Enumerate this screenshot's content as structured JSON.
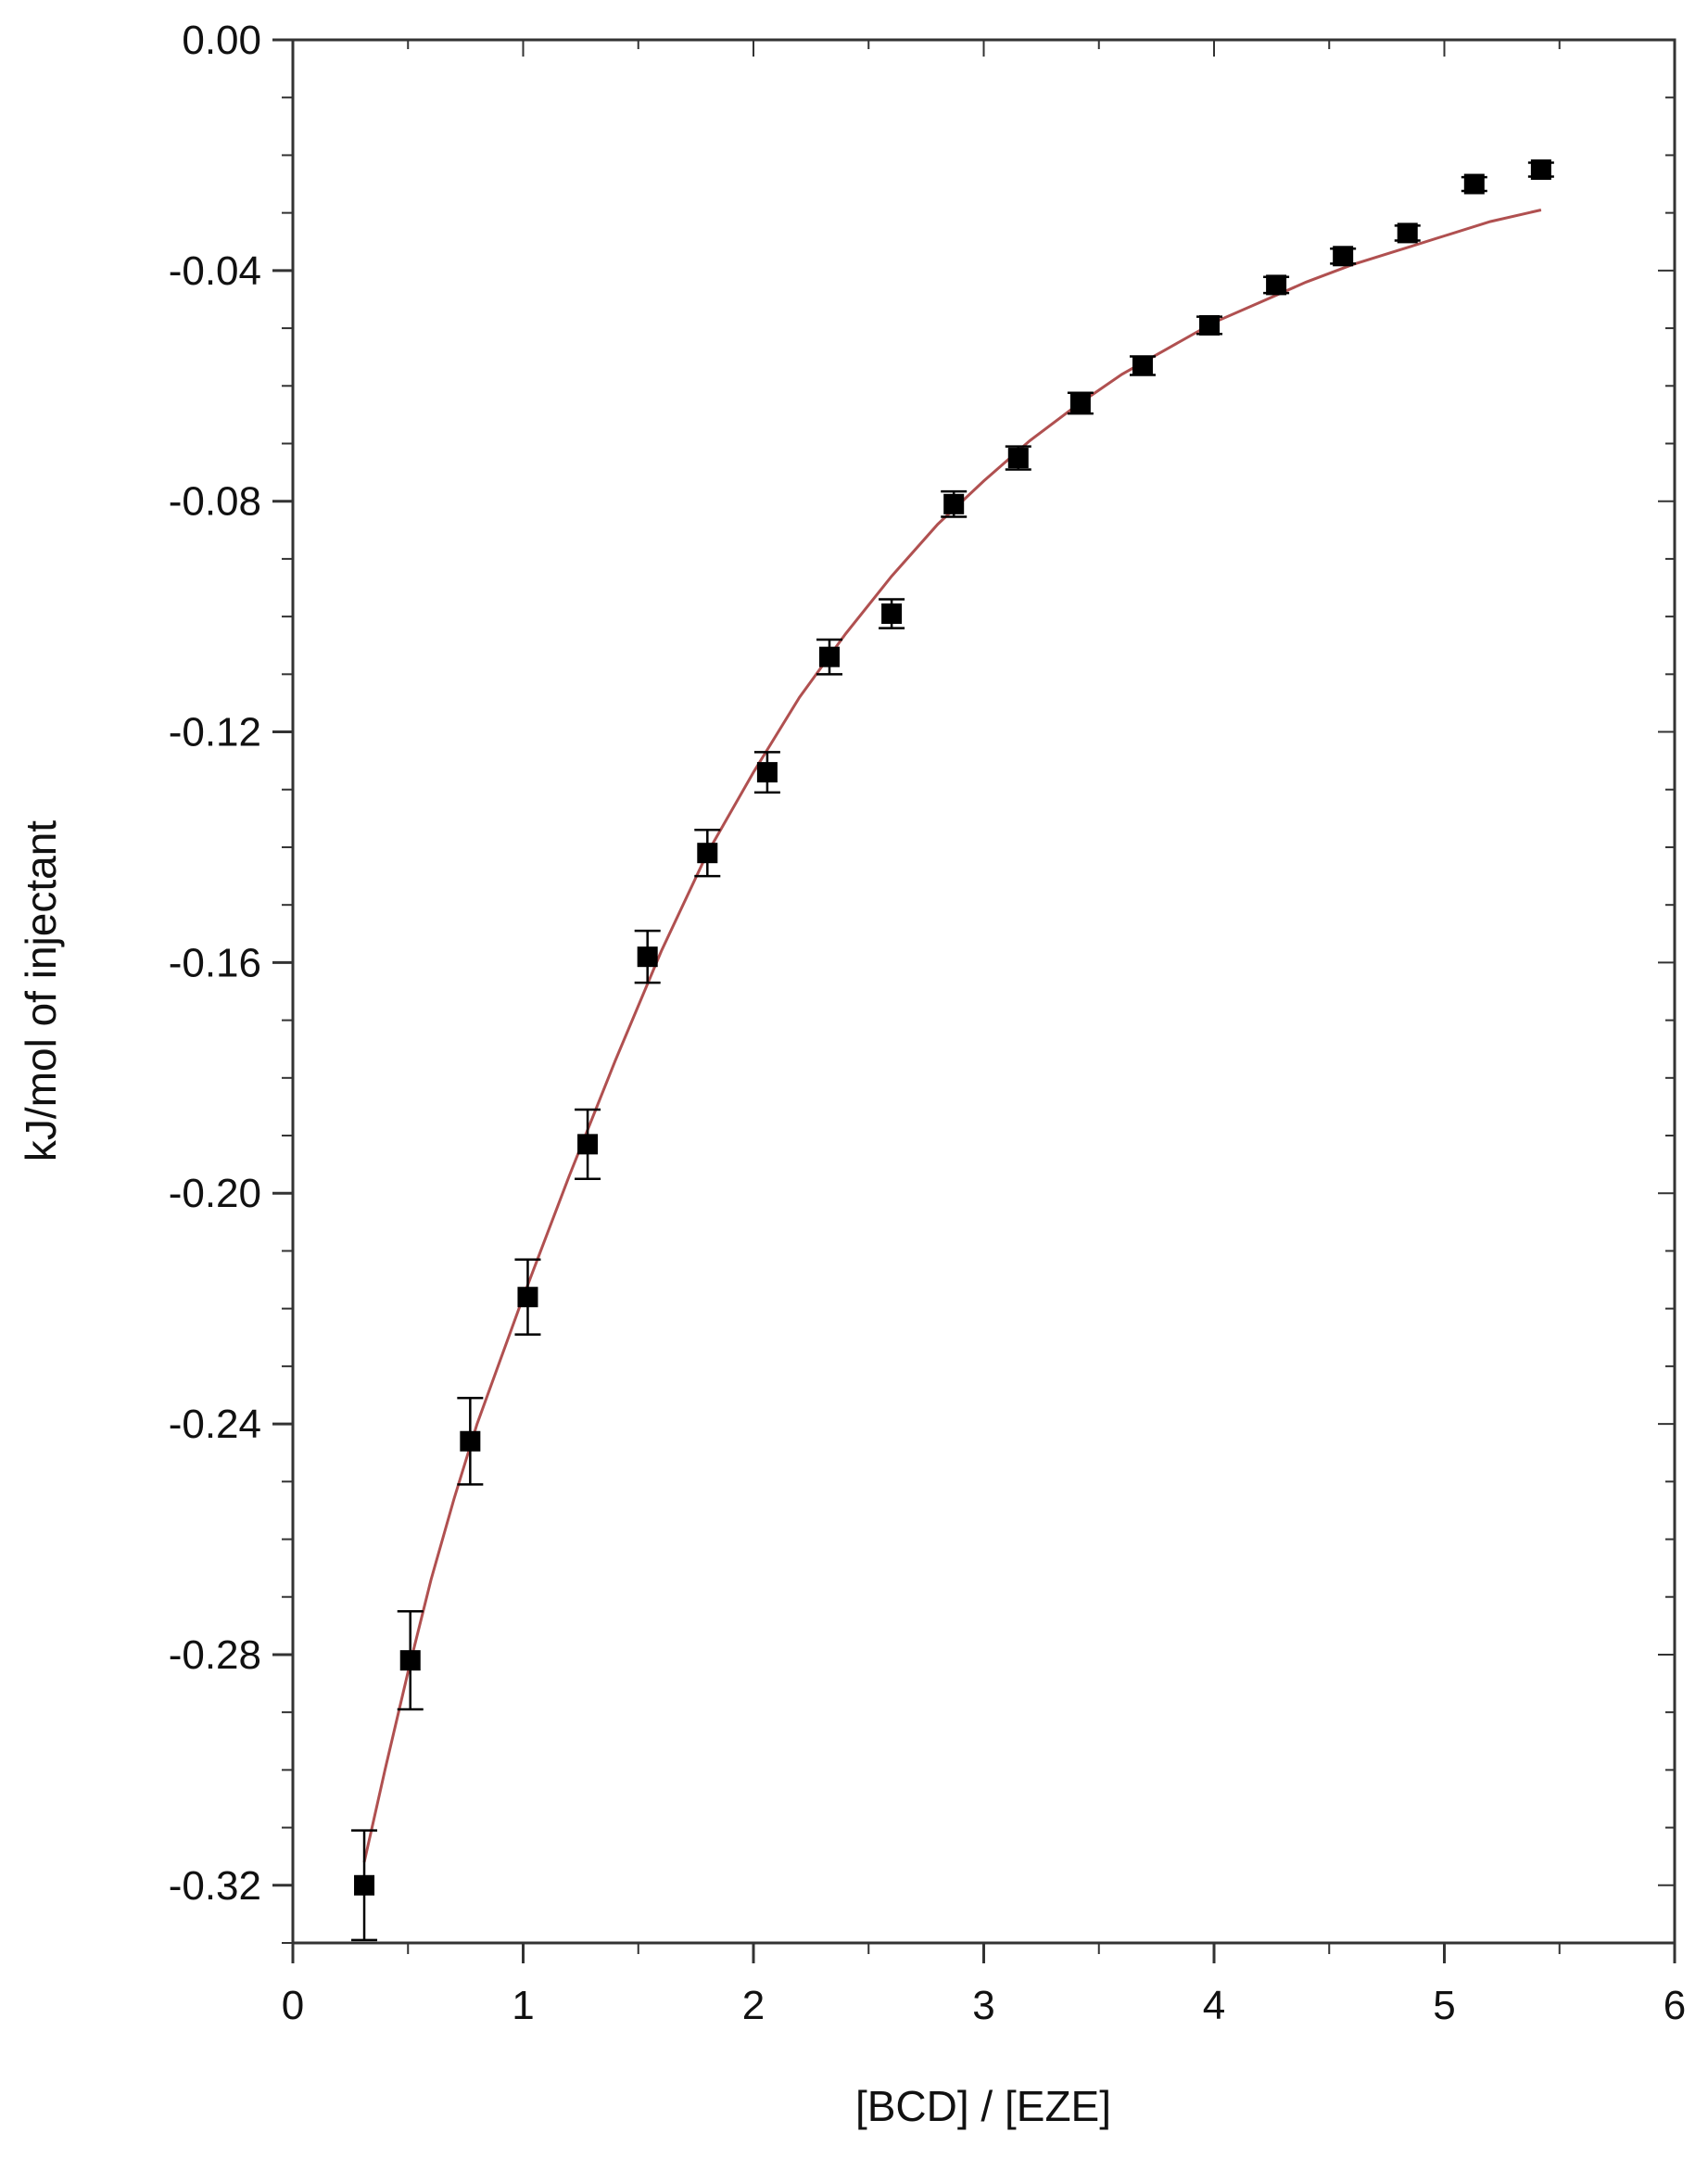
{
  "chart_data": {
    "type": "scatter",
    "xlabel": "[BCD] / [EZE]",
    "ylabel": "kJ/mol   of injectant",
    "xlim": [
      0,
      6
    ],
    "ylim": [
      -0.33,
      0.0
    ],
    "x_ticks": [
      0,
      1,
      2,
      3,
      4,
      5,
      6
    ],
    "x_tick_labels": [
      "0",
      "1",
      "2",
      "3",
      "4",
      "5",
      "6"
    ],
    "y_ticks": [
      0.0,
      -0.04,
      -0.08,
      -0.12,
      -0.16,
      -0.2,
      -0.24,
      -0.28,
      -0.32
    ],
    "y_tick_labels": [
      "0.00",
      "-0.04",
      "-0.08",
      "-0.12",
      "-0.16",
      "-0.20",
      "-0.24",
      "-0.28",
      "-0.32"
    ],
    "grid": false,
    "colors": {
      "points": "#000000",
      "fit_line": "#b05050",
      "frame": "#333333"
    },
    "series": [
      {
        "kind": "points_with_error_bars",
        "x": [
          0.31,
          0.51,
          0.77,
          1.02,
          1.28,
          1.54,
          1.8,
          2.06,
          2.33,
          2.6,
          2.87,
          3.15,
          3.42,
          3.69,
          3.98,
          4.27,
          4.56,
          4.84,
          5.13,
          5.42
        ],
        "y": [
          -0.32,
          -0.281,
          -0.243,
          -0.218,
          -0.1915,
          -0.159,
          -0.141,
          -0.127,
          -0.107,
          -0.0995,
          -0.0805,
          -0.0725,
          -0.063,
          -0.0565,
          -0.0495,
          -0.0425,
          -0.0375,
          -0.0335,
          -0.025,
          -0.0225
        ],
        "err": [
          0.0095,
          0.0085,
          0.0075,
          0.0065,
          0.006,
          0.0045,
          0.004,
          0.0035,
          0.003,
          0.0025,
          0.0022,
          0.002,
          0.0018,
          0.0016,
          0.0015,
          0.0014,
          0.0013,
          0.0013,
          0.0012,
          0.0012
        ]
      },
      {
        "kind": "fit_curve",
        "x": [
          0.31,
          0.4,
          0.5,
          0.6,
          0.7,
          0.8,
          0.9,
          1.0,
          1.2,
          1.4,
          1.6,
          1.8,
          2.0,
          2.2,
          2.4,
          2.6,
          2.8,
          3.0,
          3.2,
          3.4,
          3.6,
          3.8,
          4.0,
          4.2,
          4.4,
          4.6,
          4.8,
          5.0,
          5.2,
          5.42
        ],
        "y": [
          -0.316,
          -0.3,
          -0.283,
          -0.267,
          -0.253,
          -0.24,
          -0.229,
          -0.218,
          -0.197,
          -0.177,
          -0.158,
          -0.141,
          -0.127,
          -0.114,
          -0.103,
          -0.093,
          -0.084,
          -0.0765,
          -0.0695,
          -0.0635,
          -0.058,
          -0.0535,
          -0.049,
          -0.0455,
          -0.042,
          -0.039,
          -0.0365,
          -0.034,
          -0.0315,
          -0.0295
        ]
      }
    ]
  }
}
